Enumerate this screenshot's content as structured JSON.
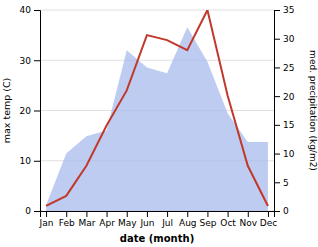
{
  "chart_data": {
    "type": "line",
    "xlabel": "date (month)",
    "ylabel": "max temp (C)",
    "y2label": "med. precipitation (kg/m2)",
    "categories": [
      "Jan",
      "Feb",
      "Mar",
      "Apr",
      "May",
      "Jun",
      "Jul",
      "Aug",
      "Sep",
      "Oct",
      "Nov",
      "Dec"
    ],
    "series": [
      {
        "type": "line",
        "color": "#c0392b",
        "values": [
          1,
          3,
          9,
          17,
          24,
          35,
          34,
          32,
          40,
          23,
          9,
          1
        ]
      },
      {
        "type": "area",
        "color": "#aabbee",
        "axis": "y2",
        "values": [
          1,
          10,
          13,
          14,
          28,
          25,
          24,
          32,
          26,
          17,
          12,
          12
        ]
      }
    ],
    "ylim": [
      0,
      40
    ],
    "yticks": [
      0,
      10,
      20,
      30,
      40
    ],
    "y2lim": [
      0,
      35
    ],
    "y2ticks": [
      0,
      5,
      10,
      15,
      20,
      25,
      30,
      35
    ],
    "grid": true
  }
}
